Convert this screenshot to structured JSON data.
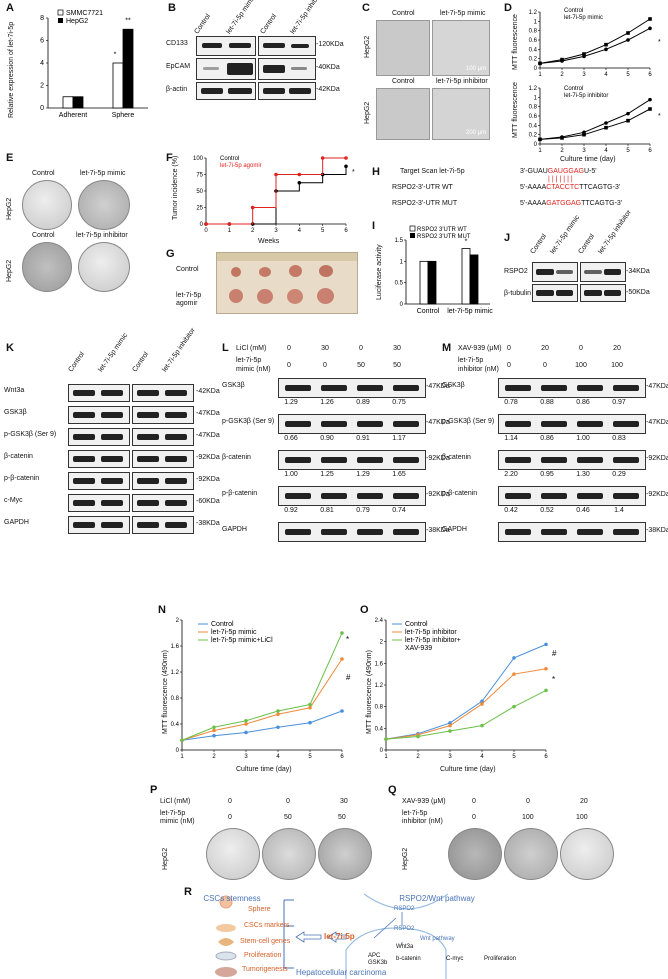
{
  "panels": {
    "A": "A",
    "B": "B",
    "C": "C",
    "D": "D",
    "E": "E",
    "F": "F",
    "G": "G",
    "H": "H",
    "I": "I",
    "J": "J",
    "K": "K",
    "L": "L",
    "M": "M",
    "N": "N",
    "O": "O",
    "P": "P",
    "Q": "Q",
    "R": "R"
  },
  "common": {
    "control": "Control",
    "mimic": "let-7i-5p mimic",
    "inhibitor": "let-7i-5p inhibitor",
    "mimic2": "let-7i-5p\nmimic",
    "inhibitor2": "let-7i-5p\ninhibitor",
    "hepg2": "HepG2",
    "star": "*",
    "star2": "**",
    "hash": "#"
  },
  "panelA": {
    "ylabel": "Relative expression of let-7i-5p",
    "legend": [
      "SMMC7721",
      "HepG2"
    ],
    "categories": [
      "Adherent",
      "Sphere"
    ]
  },
  "panelB": {
    "rows": [
      "CD133",
      "EpCAM",
      "β-actin"
    ],
    "kda": [
      "-120KDa",
      "-40KDa",
      "-42KDa"
    ]
  },
  "panelC": {
    "scale": "100 μm",
    "scale2": "200 μm"
  },
  "panelD": {
    "ylabel": "MTT fluorescence",
    "xlabel": "Culture time (day)",
    "legend1": [
      "Control",
      "let-7i-5p mimic"
    ],
    "legend2": [
      "Control",
      "let-7i-5p inhibitor"
    ]
  },
  "panelF": {
    "ylabel": "Tumor incidence (%)",
    "xlabel": "Weeks",
    "legend": [
      "Control",
      "let-7i-5p agomir"
    ]
  },
  "panelG": {
    "labels": [
      "Control",
      "let-7i-5p agomir"
    ]
  },
  "panelH": {
    "row1": {
      "label": "Target Scan   let-7i-5p",
      "seq": "3'-GUAU",
      "seqred": "GAUGGAG",
      "seqend": "U-5'"
    },
    "row2": {
      "label": "RSPO2-3'-UTR  WT",
      "seq": "5'-AAAA",
      "seqred": "CTACCTC",
      "seqend": "TTCAGTG-3'"
    },
    "row3": {
      "label": "RSPO2-3'-UTR  MUT",
      "seq": "5'-AAAA",
      "seqred": "GATGGAG",
      "seqend": "TTCAGTG-3'"
    }
  },
  "panelI": {
    "ylabel": "Luciferase activity",
    "legend": [
      "RSPO2 3'UTR WT",
      "RSPO2 3'UTR MUT"
    ],
    "categories": [
      "Control",
      "let-7i-5p mimic"
    ]
  },
  "panelJ": {
    "rows": [
      "RSPO2",
      "β-tubulin"
    ],
    "kda": [
      "-34KDa",
      "-50KDa"
    ]
  },
  "panelK": {
    "rows": [
      "Wnt3a",
      "GSK3β",
      "p-GSK3β (Ser 9)",
      "β-catenin",
      "p-β-catenin",
      "c-Myc",
      "GAPDH"
    ],
    "kda": [
      "-42KDa",
      "-47KDa",
      "-47KDa",
      "-92KDa",
      "-92KDa",
      "-60KDa",
      "-38KDa"
    ]
  },
  "panelL": {
    "cond1": "LiCl (mM)",
    "cond1vals": [
      "0",
      "30",
      "0",
      "30"
    ],
    "cond2": "let-7i-5p mimic (nM)",
    "cond2vals": [
      "0",
      "0",
      "50",
      "50"
    ],
    "rows": [
      "GSK3β",
      "p-GSK3β (Ser 9)",
      "β-catenin",
      "p-β-catenin",
      "GAPDH"
    ],
    "kda": [
      "-47KDa",
      "-47KDa",
      "-92KDa",
      "-92KDa",
      "-38KDa"
    ],
    "values": [
      [
        "1.29",
        "1.26",
        "0.89",
        "0.75"
      ],
      [
        "0.66",
        "0.90",
        "0.91",
        "1.17"
      ],
      [
        "1.00",
        "1.25",
        "1.29",
        "1.65"
      ],
      [
        "0.92",
        "0.81",
        "0.79",
        "0.74"
      ]
    ]
  },
  "panelM": {
    "cond1": "XAV-939 (μM)",
    "cond1vals": [
      "0",
      "20",
      "0",
      "20"
    ],
    "cond2": "let-7i-5p inhibitor (nM)",
    "cond2vals": [
      "0",
      "0",
      "100",
      "100"
    ],
    "rows": [
      "GSK3β",
      "p-GSK3β (Ser 9)",
      "β-catenin",
      "p-β-catenin",
      "GAPDH"
    ],
    "kda": [
      "-47KDa",
      "-47KDa",
      "-92KDa",
      "-92KDa",
      "-38KDa"
    ],
    "values": [
      [
        "0.78",
        "0.88",
        "0.86",
        "0.97"
      ],
      [
        "1.14",
        "0.86",
        "1.00",
        "0.83"
      ],
      [
        "2.20",
        "0.95",
        "1.30",
        "0.29"
      ],
      [
        "0.42",
        "0.52",
        "0.46",
        "1.4"
      ]
    ]
  },
  "panelN": {
    "ylabel": "MTT fluorescence (490nm)",
    "xlabel": "Culture time (day)",
    "legend": [
      "Control",
      "let-7i-5p mimic",
      "let-7i-5p mimic+LiCl"
    ]
  },
  "panelO": {
    "ylabel": "MTT fluorescence (490nm)",
    "xlabel": "Culture time (day)",
    "legend": [
      "Control",
      "let-7i-5p inhibitor",
      "let-7i-5p inhibitor+",
      "XAV-939"
    ]
  },
  "panelP": {
    "cond1": "LiCl (mM)",
    "cond1vals": [
      "0",
      "0",
      "30"
    ],
    "cond2": "let-7i-5p",
    "cond2b": "mimic (nM)",
    "cond2vals": [
      "0",
      "50",
      "50"
    ]
  },
  "panelQ": {
    "cond1": "XAV-939 (μM)",
    "cond1vals": [
      "0",
      "0",
      "20"
    ],
    "cond2": "let-7i-5p",
    "cond2b": "inhibitor (nM)",
    "cond2vals": [
      "0",
      "100",
      "100"
    ]
  },
  "panelR": {
    "left_title": "CSCs stemness",
    "right_title": "RSPO2/Wnt pathway",
    "bottom": "Hepatocellular carcinoma",
    "items": [
      "Sphere",
      "CSCs markers",
      "Stem-cell genes",
      "Proliferation",
      "Tumorigenesis"
    ],
    "center": "let-7i-5p",
    "rspo2a": "RSPO2",
    "rspo2b": "RSPO2",
    "wntpath": "Wnt pathway",
    "wnt3a": "Wnt3a",
    "apc": "APC",
    "gsk": "GSK3b",
    "bcat": "b-catenin",
    "cmyc": "C-myc",
    "prolif": "Proliferation"
  },
  "chart_data": [
    {
      "panel": "A",
      "type": "bar",
      "categories": [
        "Adherent",
        "Sphere"
      ],
      "series": [
        {
          "name": "SMMC7721",
          "values": [
            1.0,
            4.0
          ]
        },
        {
          "name": "HepG2",
          "values": [
            1.0,
            7.0
          ]
        }
      ],
      "ylim": [
        0,
        8
      ],
      "yticks": [
        0,
        2,
        4,
        6,
        8
      ],
      "ylabel": "Relative expression of let-7i-5p"
    },
    {
      "panel": "D-top",
      "type": "line",
      "x": [
        1,
        2,
        3,
        4,
        5,
        6
      ],
      "series": [
        {
          "name": "Control",
          "values": [
            0.1,
            0.15,
            0.25,
            0.4,
            0.6,
            0.85
          ]
        },
        {
          "name": "let-7i-5p mimic",
          "values": [
            0.1,
            0.18,
            0.3,
            0.5,
            0.75,
            1.05
          ]
        }
      ],
      "ylim": [
        0,
        1.2
      ],
      "yticks": [
        0,
        0.2,
        0.4,
        0.6,
        0.8,
        1.0,
        1.2
      ],
      "ylabel": "MTT fluorescence"
    },
    {
      "panel": "D-bottom",
      "type": "line",
      "x": [
        1,
        2,
        3,
        4,
        5,
        6
      ],
      "series": [
        {
          "name": "Control",
          "values": [
            0.1,
            0.15,
            0.25,
            0.45,
            0.65,
            0.95
          ]
        },
        {
          "name": "let-7i-5p inhibitor",
          "values": [
            0.1,
            0.13,
            0.2,
            0.35,
            0.5,
            0.75
          ]
        }
      ],
      "ylim": [
        0,
        1.2
      ],
      "yticks": [
        0,
        0.2,
        0.4,
        0.6,
        0.8,
        1.0,
        1.2
      ],
      "xlabel": "Culture time (day)"
    },
    {
      "panel": "F",
      "type": "line",
      "x": [
        0,
        1,
        2,
        3,
        4,
        5,
        6
      ],
      "series": [
        {
          "name": "Control",
          "values": [
            0,
            0,
            0,
            50,
            62.5,
            75,
            87.5
          ]
        },
        {
          "name": "let-7i-5p agomir",
          "values": [
            0,
            0,
            25,
            75,
            75,
            100,
            100
          ]
        }
      ],
      "ylim": [
        0,
        100
      ],
      "yticks": [
        0,
        25,
        50,
        75,
        100
      ],
      "xlabel": "Weeks",
      "ylabel": "Tumor incidence (%)"
    },
    {
      "panel": "I",
      "type": "bar",
      "categories": [
        "Control",
        "let-7i-5p mimic"
      ],
      "series": [
        {
          "name": "RSPO2 3'UTR WT",
          "values": [
            1.0,
            1.3
          ]
        },
        {
          "name": "RSPO2 3'UTR MUT",
          "values": [
            1.0,
            1.15
          ]
        }
      ],
      "ylim": [
        0,
        1.5
      ],
      "yticks": [
        0,
        0.5,
        1.0,
        1.5
      ],
      "ylabel": "Luciferase activity"
    },
    {
      "panel": "N",
      "type": "line",
      "x": [
        1,
        2,
        3,
        4,
        5,
        6
      ],
      "series": [
        {
          "name": "Control",
          "values": [
            0.15,
            0.22,
            0.27,
            0.35,
            0.42,
            0.6
          ]
        },
        {
          "name": "let-7i-5p mimic",
          "values": [
            0.15,
            0.3,
            0.4,
            0.55,
            0.65,
            1.4
          ]
        },
        {
          "name": "let-7i-5p mimic+LiCl",
          "values": [
            0.15,
            0.35,
            0.45,
            0.6,
            0.7,
            1.8
          ]
        }
      ],
      "ylim": [
        0,
        2.0
      ],
      "yticks": [
        0,
        0.4,
        0.8,
        1.2,
        1.6,
        2.0
      ],
      "xlabel": "Culture time (day)",
      "ylabel": "MTT fluorescence (490nm)"
    },
    {
      "panel": "O",
      "type": "line",
      "x": [
        1,
        2,
        3,
        4,
        5,
        6
      ],
      "series": [
        {
          "name": "Control",
          "values": [
            0.2,
            0.3,
            0.5,
            0.9,
            1.7,
            1.95
          ]
        },
        {
          "name": "let-7i-5p inhibitor",
          "values": [
            0.2,
            0.28,
            0.45,
            0.85,
            1.4,
            1.5
          ]
        },
        {
          "name": "let-7i-5p inhibitor+XAV-939",
          "values": [
            0.2,
            0.25,
            0.35,
            0.45,
            0.8,
            1.1
          ]
        }
      ],
      "ylim": [
        0,
        2.4
      ],
      "yticks": [
        0,
        0.4,
        0.8,
        1.2,
        1.6,
        2.0,
        2.4
      ],
      "xlabel": "Culture time (day)",
      "ylabel": "MTT fluorescence (490nm)"
    }
  ]
}
